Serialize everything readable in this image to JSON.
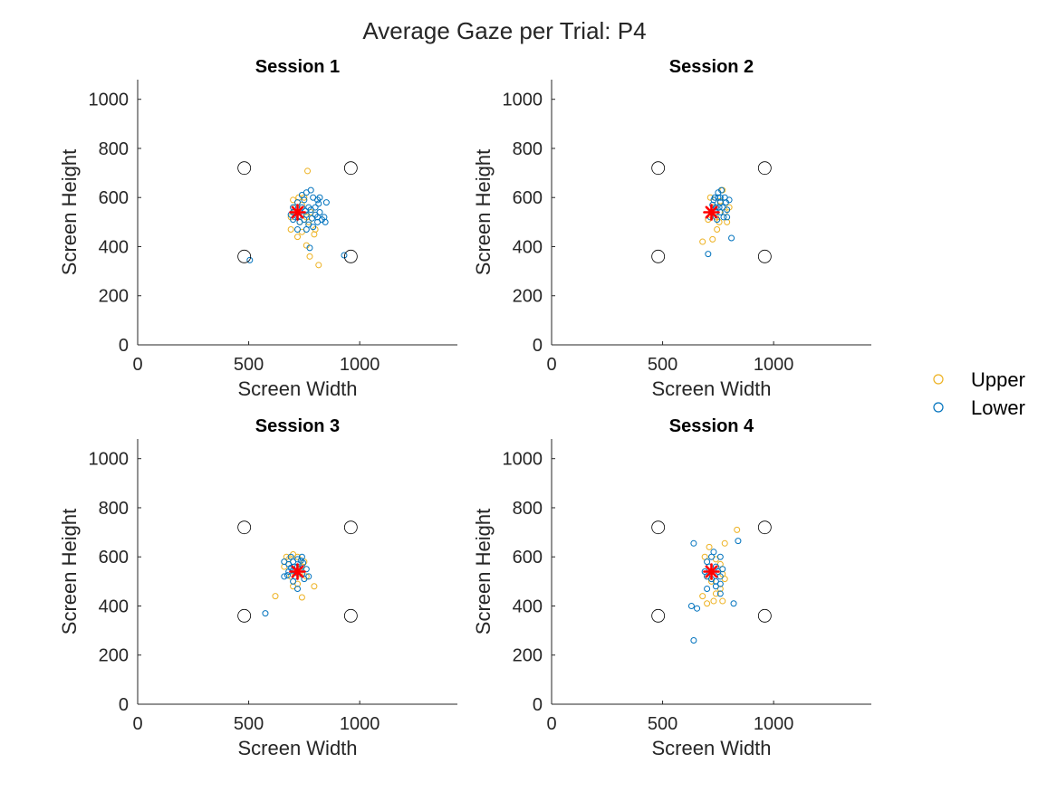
{
  "chart_data": {
    "title": "Average Gaze per Trial: P4",
    "type": "scatter",
    "legend": {
      "placement": "right",
      "entries": [
        {
          "name": "Upper",
          "color": "#EDB120"
        },
        {
          "name": "Lower",
          "color": "#0072BD"
        }
      ]
    },
    "colors": {
      "upper": "#EDB120",
      "lower": "#0072BD",
      "targets": "#000000",
      "center": "#FF0000"
    },
    "shared": {
      "xlabel": "Screen Width",
      "ylabel": "Screen Height",
      "xlim": [
        0,
        1440
      ],
      "ylim": [
        0,
        1080
      ],
      "xticks": [
        0,
        500,
        1000
      ],
      "yticks": [
        0,
        200,
        400,
        600,
        800,
        1000
      ],
      "grid": false,
      "targets": [
        [
          480,
          720
        ],
        [
          960,
          720
        ],
        [
          480,
          360
        ],
        [
          960,
          360
        ]
      ],
      "center": [
        720,
        540
      ]
    },
    "panels": [
      {
        "title": "Session 1",
        "series": [
          {
            "name": "Upper",
            "points": [
              [
                765,
                708
              ],
              [
                740,
                460
              ],
              [
                720,
                440
              ],
              [
                760,
                405
              ],
              [
                775,
                360
              ],
              [
                815,
                325
              ],
              [
                795,
                450
              ],
              [
                690,
                470
              ],
              [
                700,
                590
              ],
              [
                760,
                520
              ],
              [
                740,
                570
              ],
              [
                710,
                560
              ],
              [
                730,
                500
              ],
              [
                780,
                540
              ],
              [
                800,
                470
              ],
              [
                690,
                520
              ],
              [
                750,
                600
              ],
              [
                770,
                500
              ],
              [
                725,
                600
              ],
              [
                705,
                540
              ]
            ]
          },
          {
            "name": "Lower",
            "points": [
              [
                505,
                345
              ],
              [
                775,
                395
              ],
              [
                930,
                365
              ],
              [
                700,
                540
              ],
              [
                720,
                580
              ],
              [
                740,
                560
              ],
              [
                760,
                530
              ],
              [
                780,
                550
              ],
              [
                800,
                560
              ],
              [
                820,
                540
              ],
              [
                840,
                520
              ],
              [
                810,
                590
              ],
              [
                790,
                600
              ],
              [
                760,
                620
              ],
              [
                740,
                610
              ],
              [
                710,
                520
              ],
              [
                730,
                500
              ],
              [
                750,
                510
              ],
              [
                770,
                490
              ],
              [
                790,
                480
              ],
              [
                810,
                500
              ],
              [
                830,
                510
              ],
              [
                700,
                560
              ],
              [
                690,
                530
              ],
              [
                720,
                470
              ],
              [
                760,
                470
              ],
              [
                800,
                530
              ],
              [
                820,
                600
              ],
              [
                780,
                630
              ],
              [
                750,
                590
              ],
              [
                730,
                540
              ],
              [
                770,
                560
              ],
              [
                810,
                520
              ],
              [
                850,
                580
              ],
              [
                845,
                500
              ],
              [
                700,
                510
              ],
              [
                725,
                525
              ],
              [
                755,
                545
              ],
              [
                785,
                515
              ],
              [
                815,
                575
              ]
            ]
          }
        ]
      },
      {
        "title": "Session 2",
        "series": [
          {
            "name": "Upper",
            "points": [
              [
                680,
                420
              ],
              [
                725,
                430
              ],
              [
                770,
                630
              ],
              [
                790,
                500
              ],
              [
                745,
                470
              ],
              [
                705,
                510
              ],
              [
                760,
                585
              ],
              [
                730,
                560
              ],
              [
                780,
                540
              ],
              [
                740,
                520
              ],
              [
                800,
                560
              ],
              [
                715,
                600
              ],
              [
                755,
                500
              ]
            ]
          },
          {
            "name": "Lower",
            "points": [
              [
                705,
                370
              ],
              [
                810,
                435
              ],
              [
                720,
                540
              ],
              [
                740,
                560
              ],
              [
                760,
                580
              ],
              [
                780,
                600
              ],
              [
                750,
                620
              ],
              [
                770,
                560
              ],
              [
                730,
                590
              ],
              [
                760,
                540
              ],
              [
                790,
                520
              ],
              [
                745,
                510
              ],
              [
                715,
                520
              ],
              [
                735,
                600
              ],
              [
                765,
                630
              ],
              [
                785,
                580
              ],
              [
                800,
                590
              ],
              [
                755,
                560
              ],
              [
                725,
                570
              ],
              [
                750,
                600
              ],
              [
                775,
                520
              ],
              [
                790,
                550
              ],
              [
                740,
                540
              ],
              [
                760,
                600
              ]
            ]
          }
        ]
      },
      {
        "title": "Session 3",
        "series": [
          {
            "name": "Upper",
            "points": [
              [
                620,
                440
              ],
              [
                795,
                480
              ],
              [
                740,
                435
              ],
              [
                700,
                480
              ],
              [
                680,
                590
              ],
              [
                720,
                600
              ],
              [
                740,
                560
              ],
              [
                660,
                560
              ],
              [
                700,
                610
              ],
              [
                760,
                520
              ],
              [
                690,
                520
              ],
              [
                720,
                490
              ],
              [
                750,
                580
              ],
              [
                670,
                600
              ],
              [
                730,
                530
              ]
            ]
          },
          {
            "name": "Lower",
            "points": [
              [
                575,
                370
              ],
              [
                700,
                545
              ],
              [
                720,
                560
              ],
              [
                680,
                540
              ],
              [
                660,
                520
              ],
              [
                740,
                530
              ],
              [
                760,
                550
              ],
              [
                700,
                580
              ],
              [
                720,
                590
              ],
              [
                690,
                600
              ],
              [
                740,
                600
              ],
              [
                710,
                520
              ],
              [
                680,
                570
              ],
              [
                730,
                550
              ],
              [
                750,
                510
              ],
              [
                770,
                520
              ],
              [
                700,
                500
              ],
              [
                720,
                470
              ],
              [
                660,
                580
              ],
              [
                745,
                575
              ],
              [
                690,
                555
              ],
              [
                715,
                535
              ],
              [
                735,
                585
              ],
              [
                705,
                560
              ],
              [
                675,
                525
              ]
            ]
          }
        ]
      },
      {
        "title": "Session 4",
        "series": [
          {
            "name": "Upper",
            "points": [
              [
                835,
                710
              ],
              [
                780,
                655
              ],
              [
                770,
                420
              ],
              [
                700,
                410
              ],
              [
                680,
                440
              ],
              [
                740,
                590
              ],
              [
                760,
                570
              ],
              [
                720,
                500
              ],
              [
                700,
                520
              ],
              [
                760,
                470
              ],
              [
                690,
                600
              ],
              [
                780,
                510
              ],
              [
                740,
                450
              ],
              [
                710,
                640
              ],
              [
                730,
                420
              ],
              [
                770,
                530
              ]
            ]
          },
          {
            "name": "Lower",
            "points": [
              [
                640,
                655
              ],
              [
                840,
                665
              ],
              [
                640,
                260
              ],
              [
                655,
                390
              ],
              [
                630,
                400
              ],
              [
                820,
                410
              ],
              [
                760,
                450
              ],
              [
                720,
                540
              ],
              [
                740,
                560
              ],
              [
                700,
                520
              ],
              [
                740,
                500
              ],
              [
                760,
                520
              ],
              [
                720,
                600
              ],
              [
                700,
                580
              ],
              [
                730,
                620
              ],
              [
                760,
                600
              ],
              [
                700,
                470
              ],
              [
                740,
                480
              ],
              [
                720,
                510
              ],
              [
                770,
                550
              ],
              [
                710,
                560
              ],
              [
                750,
                540
              ],
              [
                690,
                540
              ],
              [
                760,
                490
              ]
            ]
          }
        ]
      }
    ]
  }
}
